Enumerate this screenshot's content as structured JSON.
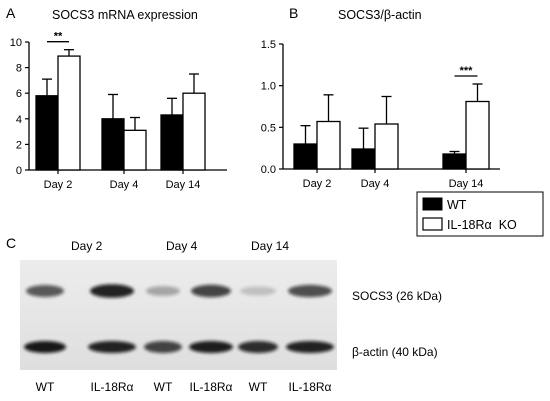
{
  "chart_data": [
    {
      "panel": "A",
      "type": "bar",
      "title": "SOCS3 mRNA expression",
      "xlabel": "",
      "ylabel": "",
      "categories": [
        "Day 2",
        "Day 4",
        "Day 14"
      ],
      "ylim": [
        0,
        10
      ],
      "yticks": [
        "0",
        "2",
        "4",
        "6",
        "8",
        "10"
      ],
      "series": [
        {
          "name": "WT",
          "values": [
            5.8,
            4.0,
            4.3
          ],
          "errors": [
            1.3,
            1.9,
            1.3
          ]
        },
        {
          "name": "IL-18Rα KO",
          "values": [
            8.9,
            3.1,
            6.0
          ],
          "errors": [
            0.5,
            1.0,
            1.5
          ]
        }
      ],
      "significance": [
        {
          "category": "Day 2",
          "label": "**"
        }
      ]
    },
    {
      "panel": "B",
      "type": "bar",
      "title": "SOCS3/β-actin",
      "xlabel": "",
      "ylabel": "",
      "categories": [
        "Day 2",
        "Day 4",
        "Day 14"
      ],
      "ylim": [
        0,
        1.5
      ],
      "yticks": [
        "0.0",
        "0.5",
        "1.0",
        "1.5"
      ],
      "series": [
        {
          "name": "WT",
          "values": [
            0.3,
            0.24,
            0.18
          ],
          "errors": [
            0.22,
            0.25,
            0.03
          ]
        },
        {
          "name": "IL-18Rα KO",
          "values": [
            0.57,
            0.54,
            0.81
          ],
          "errors": [
            0.32,
            0.33,
            0.21
          ]
        }
      ],
      "significance": [
        {
          "category": "Day 14",
          "label": "***"
        }
      ]
    }
  ],
  "legend": {
    "items": [
      "WT",
      "IL-18Rα  KO"
    ]
  },
  "panel_c": {
    "letter": "C",
    "day_labels": [
      "Day 2",
      "Day 4",
      "Day 14"
    ],
    "lane_labels": [
      "WT",
      "IL-18Rα",
      "WT",
      "IL-18Rα",
      "WT",
      "IL-18Rα"
    ],
    "band_labels": [
      "SOCS3 (26 kDa)",
      "β-actin (40 kDa)"
    ],
    "socs3_intensity": [
      0.65,
      0.9,
      0.3,
      0.75,
      0.18,
      0.7
    ],
    "actin_intensity": [
      0.95,
      0.9,
      0.75,
      0.92,
      0.85,
      0.9
    ]
  }
}
